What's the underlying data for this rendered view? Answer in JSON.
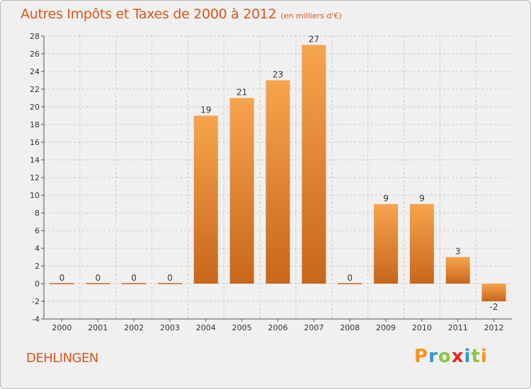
{
  "chart_data": {
    "type": "bar",
    "title": "Autres Impôts et Taxes de 2000 à 2012",
    "subtitle": "(en milliers d'€)",
    "categories": [
      "2000",
      "2001",
      "2002",
      "2003",
      "2004",
      "2005",
      "2006",
      "2007",
      "2008",
      "2009",
      "2010",
      "2011",
      "2012"
    ],
    "values": [
      0,
      0,
      0,
      0,
      19,
      21,
      23,
      27,
      0,
      9,
      9,
      3,
      -2
    ],
    "data_labels": [
      "0",
      "0",
      "0",
      "0",
      "19",
      "21",
      "23",
      "27",
      "0",
      "9",
      "9",
      "3",
      "-2"
    ],
    "ylim": [
      -4,
      28
    ],
    "yticks": [
      -4,
      -2,
      0,
      2,
      4,
      6,
      8,
      10,
      12,
      14,
      16,
      18,
      20,
      22,
      24,
      26,
      28
    ],
    "grid": true,
    "bar_color_light": "#f7a44e",
    "bar_color_dark": "#c8661a"
  },
  "place_name": "DEHLINGEN",
  "logo": {
    "text": "Proxiti",
    "letters": [
      "P",
      "r",
      "o",
      "x",
      "i",
      "t",
      "i"
    ],
    "colors": [
      "#f7941d",
      "#2e9ad6",
      "#8cc63f",
      "#e8262a",
      "#2e9ad6",
      "#8cc63f",
      "#f7941d"
    ]
  }
}
